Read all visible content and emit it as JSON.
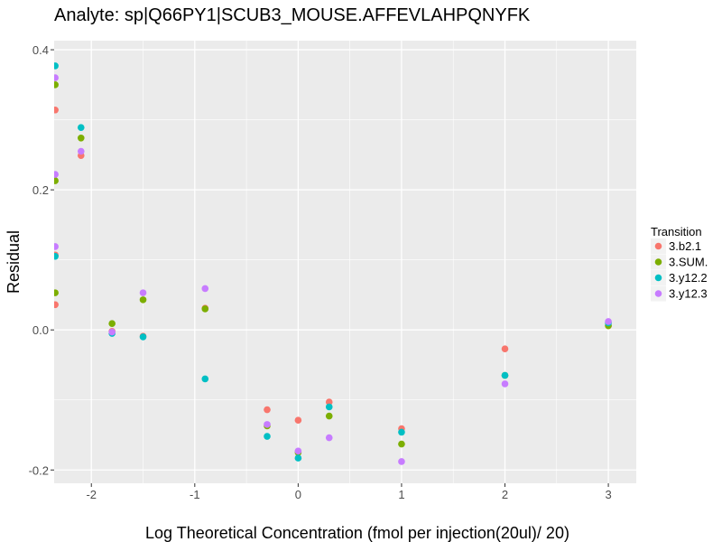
{
  "chart_data": {
    "type": "scatter",
    "title": "Analyte: sp|Q66PY1|SCUB3_MOUSE.AFFEVLAHPQNYFK",
    "xlabel": "Log Theoretical Concentration (fmol per injection(20ul)/ 20)",
    "ylabel": "Residual",
    "xlim": [
      -2.36,
      3.27
    ],
    "ylim": [
      -0.219,
      0.413
    ],
    "xticks": [
      -2,
      -1,
      0,
      1,
      2,
      3
    ],
    "xtick_labels": [
      "-2",
      "-1",
      "0",
      "1",
      "2",
      "3"
    ],
    "yticks": [
      -0.2,
      0.0,
      0.2,
      0.4
    ],
    "ytick_labels": [
      "-0.2",
      "0.0",
      "0.2",
      "0.4"
    ],
    "grid": true,
    "legend": {
      "title": "Transition",
      "placement": "right"
    },
    "series": [
      {
        "name": "3.b2.1",
        "color": "#F8766D",
        "points": [
          [
            -2.35,
            0.314
          ],
          [
            -2.35,
            0.107
          ],
          [
            -2.35,
            0.036
          ],
          [
            -2.1,
            0.249
          ],
          [
            -1.8,
            -0.002
          ],
          [
            -1.5,
            -0.009
          ],
          [
            -0.9,
            0.031
          ],
          [
            -0.3,
            -0.114
          ],
          [
            0,
            -0.129
          ],
          [
            0.3,
            -0.103
          ],
          [
            1,
            -0.141
          ],
          [
            2,
            -0.027
          ],
          [
            3,
            0.006
          ]
        ]
      },
      {
        "name": "3.SUM.",
        "color": "#7CAE00",
        "points": [
          [
            -2.35,
            0.35
          ],
          [
            -2.35,
            0.213
          ],
          [
            -2.35,
            0.053
          ],
          [
            -2.1,
            0.274
          ],
          [
            -1.8,
            0.009
          ],
          [
            -1.5,
            0.043
          ],
          [
            -0.9,
            0.03
          ],
          [
            -0.3,
            -0.137
          ],
          [
            0,
            -0.175
          ],
          [
            0.3,
            -0.123
          ],
          [
            1,
            -0.163
          ],
          [
            2,
            -0.065
          ],
          [
            3,
            0.006
          ]
        ]
      },
      {
        "name": "3.y12.2",
        "color": "#00BFC4",
        "points": [
          [
            -2.35,
            0.377
          ],
          [
            -2.35,
            0.105
          ],
          [
            -2.1,
            0.289
          ],
          [
            -1.8,
            -0.005
          ],
          [
            -1.5,
            -0.01
          ],
          [
            -0.9,
            -0.07
          ],
          [
            -0.3,
            -0.152
          ],
          [
            0,
            -0.183
          ],
          [
            0.3,
            -0.11
          ],
          [
            1,
            -0.146
          ],
          [
            2,
            -0.065
          ],
          [
            3,
            0.01
          ]
        ]
      },
      {
        "name": "3.y12.3",
        "color": "#C77CFF",
        "points": [
          [
            -2.35,
            0.36
          ],
          [
            -2.35,
            0.222
          ],
          [
            -2.35,
            0.119
          ],
          [
            -2.1,
            0.255
          ],
          [
            -1.8,
            -0.003
          ],
          [
            -1.5,
            0.053
          ],
          [
            -0.9,
            0.059
          ],
          [
            -0.3,
            -0.135
          ],
          [
            0,
            -0.173
          ],
          [
            0.3,
            -0.154
          ],
          [
            1,
            -0.188
          ],
          [
            2,
            -0.077
          ],
          [
            3,
            0.012
          ]
        ]
      }
    ]
  }
}
